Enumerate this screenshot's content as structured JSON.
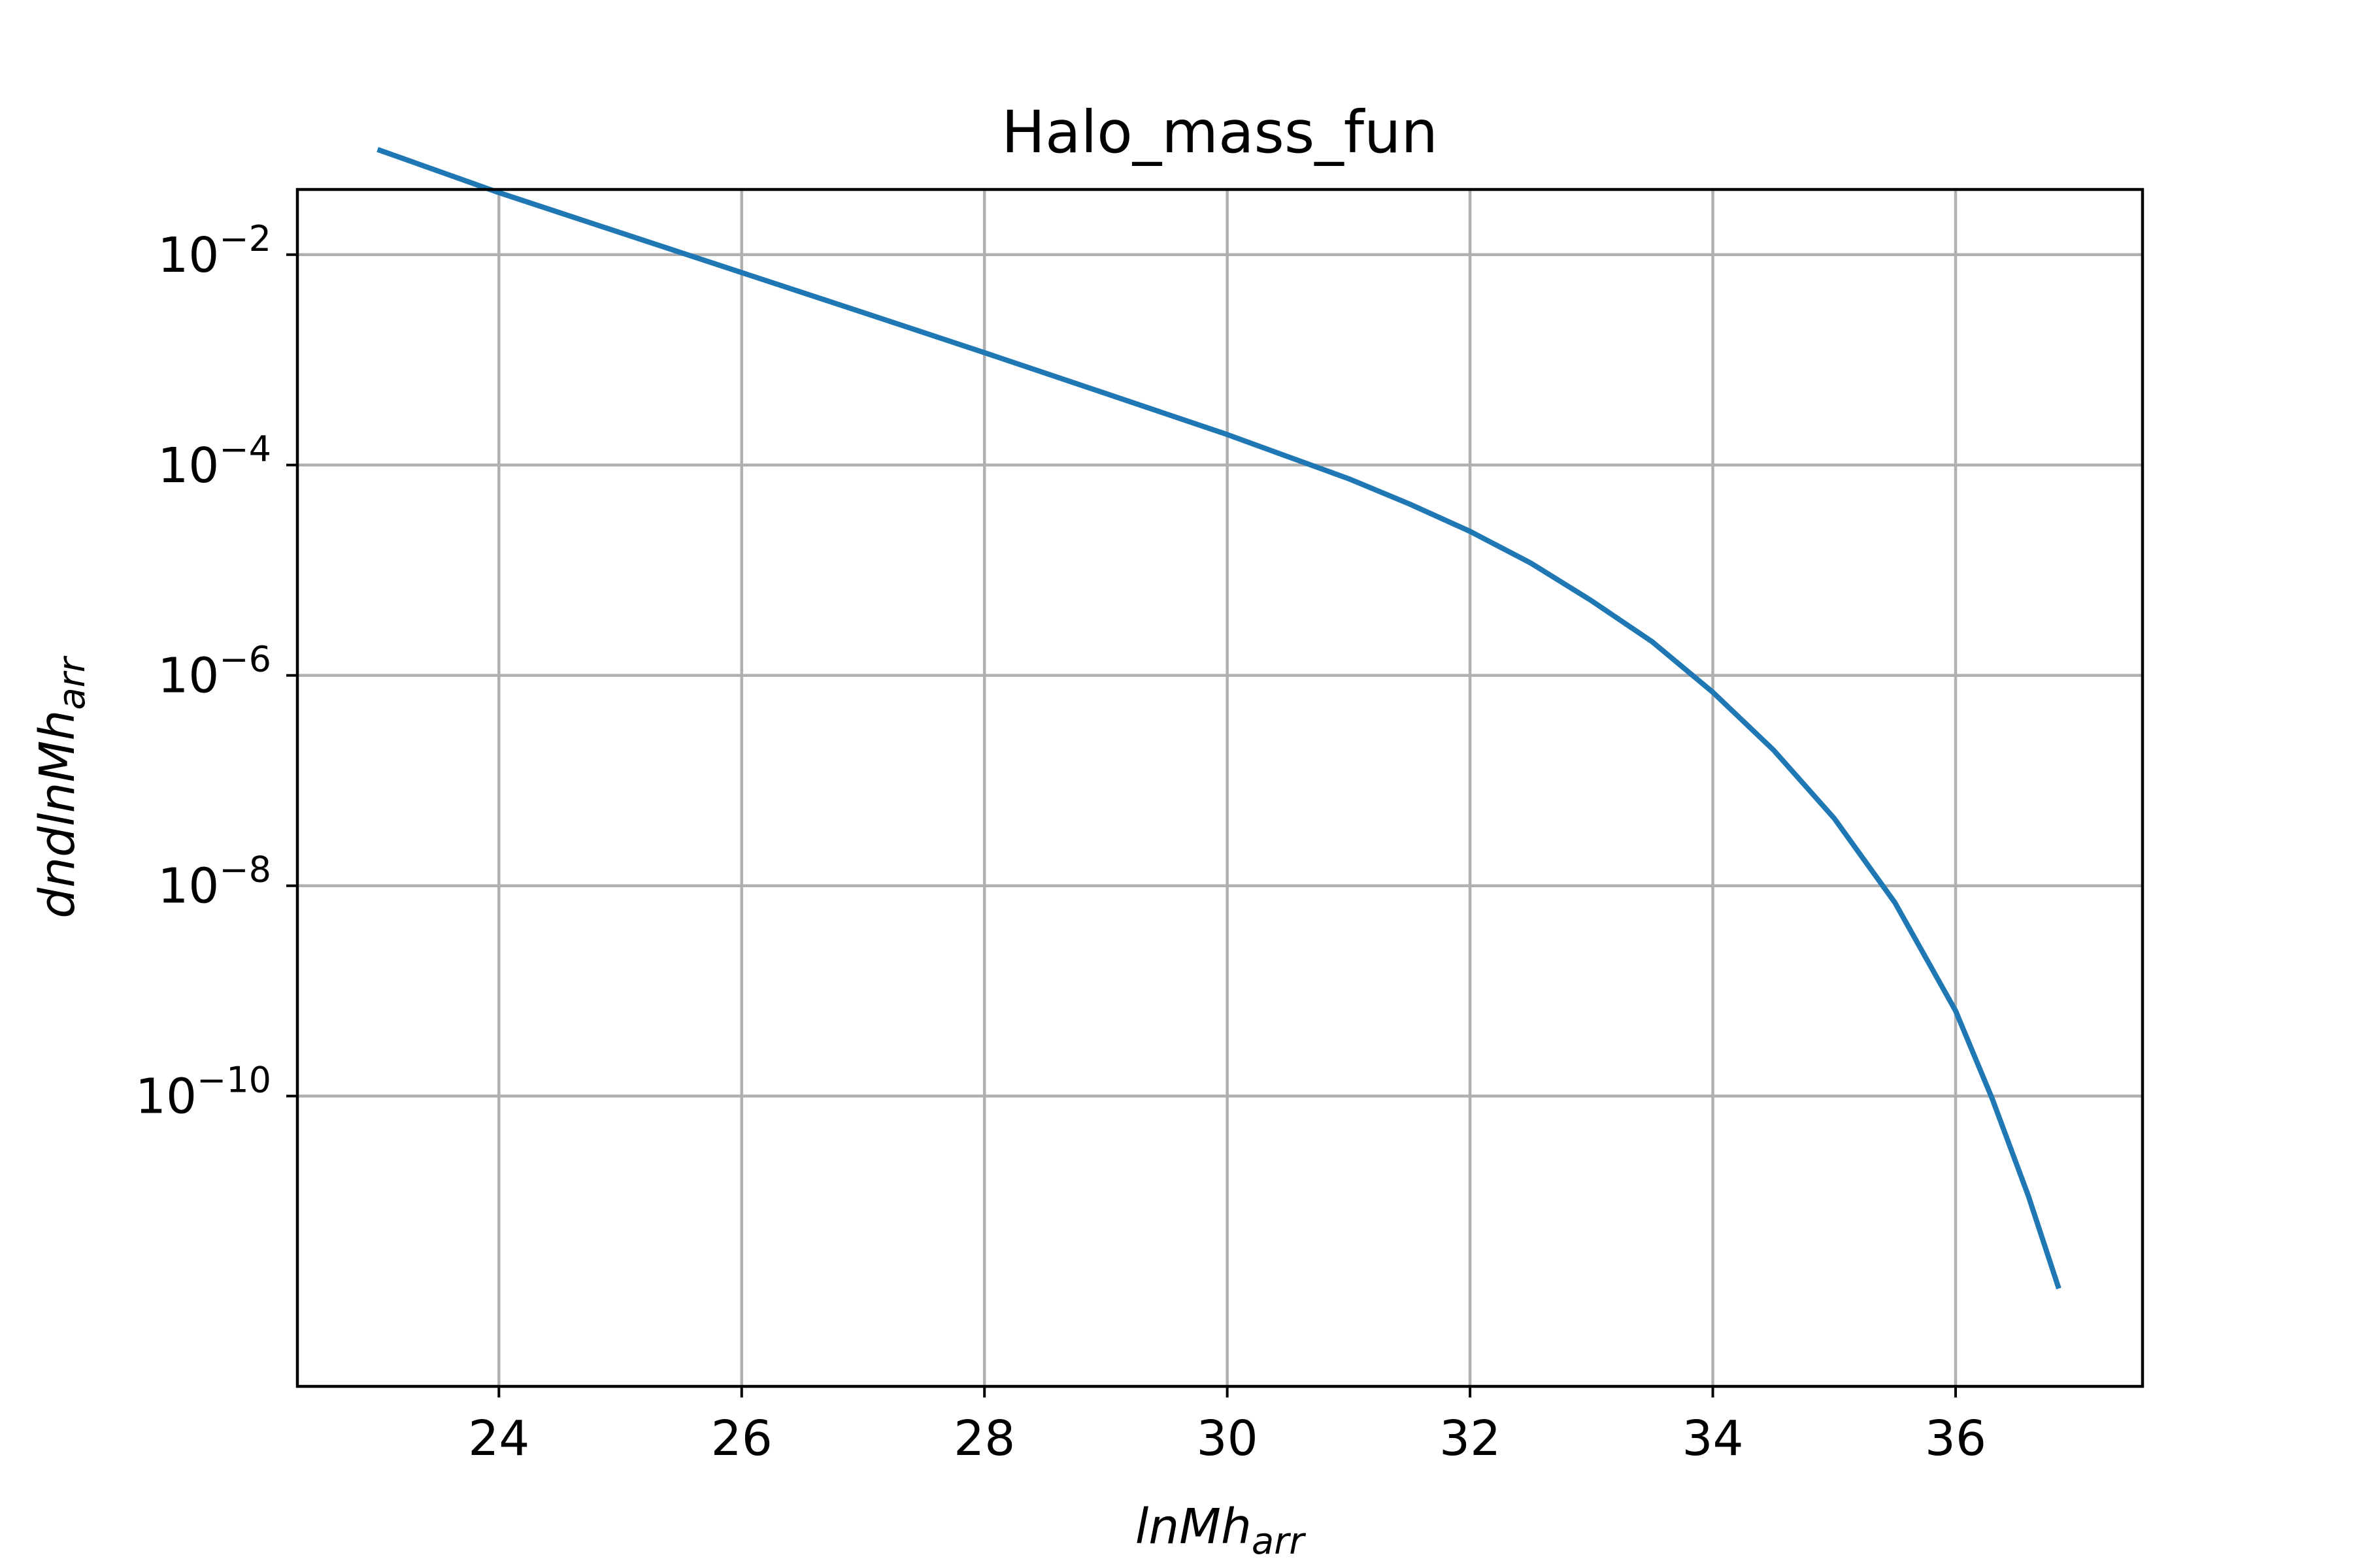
{
  "chart_data": {
    "type": "line",
    "title": "Halo_mass_fun",
    "xlabel": {
      "base": "lnMh",
      "sub": "arr"
    },
    "ylabel": {
      "base": "dndlnMh",
      "sub": "arr"
    },
    "xscale": "linear",
    "yscale": "log",
    "xlim": [
      22.34,
      37.54
    ],
    "ylim_log10": [
      -12.76,
      -1.38
    ],
    "grid": true,
    "legend": "none",
    "x_ticks": [
      24,
      26,
      28,
      30,
      32,
      34,
      36
    ],
    "x_tick_labels": [
      "24",
      "26",
      "28",
      "30",
      "32",
      "34",
      "36"
    ],
    "y_ticks_log10": [
      -2,
      -4,
      -6,
      -8,
      -10
    ],
    "y_tick_labels": [
      {
        "base": "10",
        "exp": "−2"
      },
      {
        "base": "10",
        "exp": "−4"
      },
      {
        "base": "10",
        "exp": "−6"
      },
      {
        "base": "10",
        "exp": "−8"
      },
      {
        "base": "10",
        "exp": "−10"
      }
    ],
    "series": [
      {
        "color": "#1f77b4",
        "x": [
          23.0,
          24.0,
          25.0,
          26.0,
          27.0,
          28.0,
          29.0,
          30.0,
          30.5,
          31.0,
          31.5,
          32.0,
          32.5,
          33.0,
          33.5,
          34.0,
          34.5,
          35.0,
          35.5,
          36.0,
          36.3,
          36.6,
          36.85
        ],
        "y": [
          0.1,
          0.0389,
          0.0162,
          0.00676,
          0.00282,
          0.00117,
          0.000479,
          0.000195,
          0.00012,
          7.41e-05,
          4.27e-05,
          2.34e-05,
          1.17e-05,
          5.13e-06,
          2.09e-06,
          6.92e-07,
          1.95e-07,
          4.37e-08,
          6.92e-09,
          6.46e-10,
          9.55e-11,
          1.12e-11,
          1.48e-12
        ]
      }
    ]
  }
}
